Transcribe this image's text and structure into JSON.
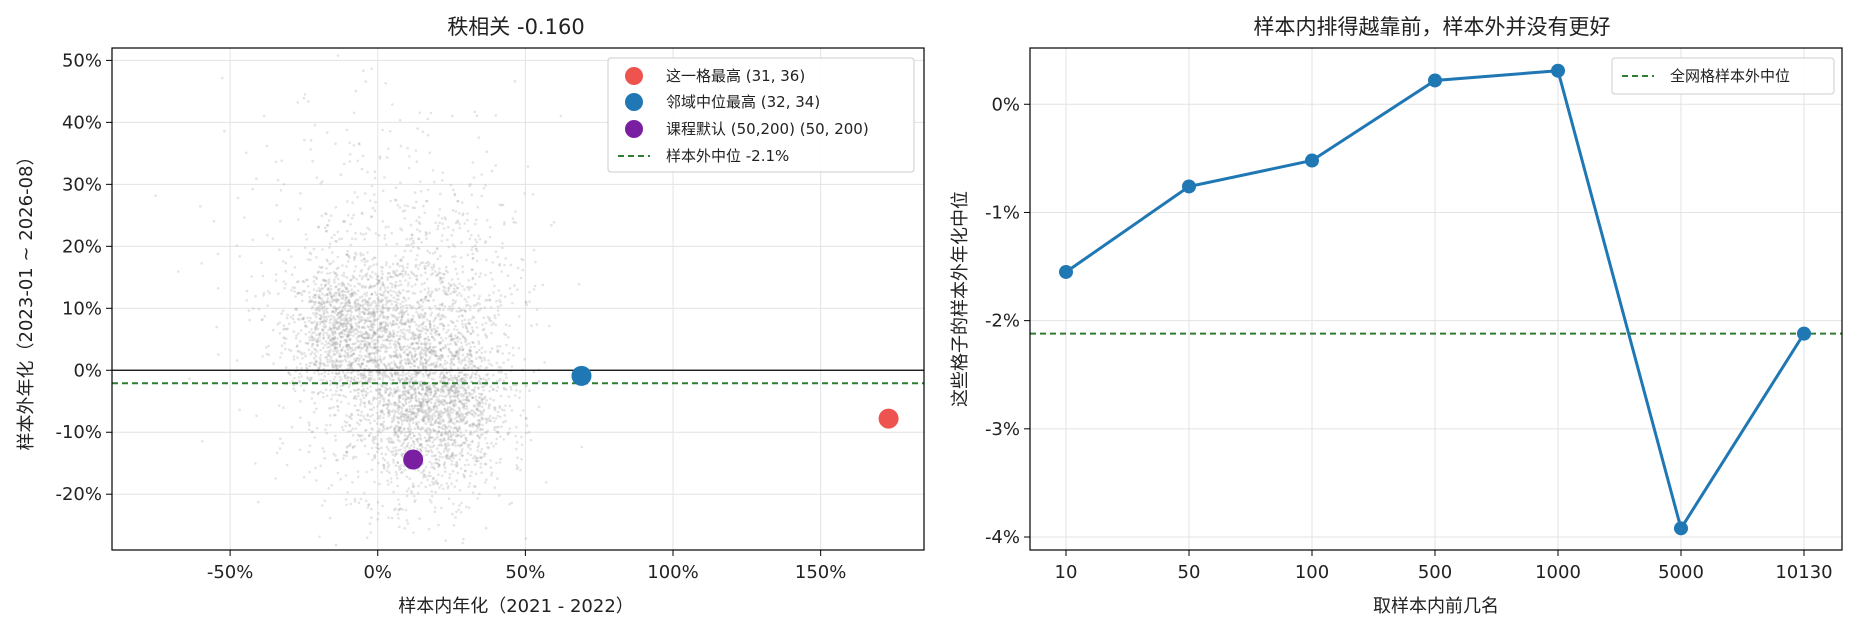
{
  "chart_data": [
    {
      "type": "scatter",
      "title": "秩相关 -0.160",
      "xlabel": "样本内年化（2021 - 2022）",
      "ylabel": "样本外年化（2023-01 ~ 2026-08）",
      "xlim": [
        -0.9,
        1.85
      ],
      "ylim": [
        -0.29,
        0.52
      ],
      "xticks": [
        {
          "value": -0.5,
          "label": "-50%"
        },
        {
          "value": 0.0,
          "label": "0%"
        },
        {
          "value": 0.5,
          "label": "50%"
        },
        {
          "value": 1.0,
          "label": "100%"
        },
        {
          "value": 1.5,
          "label": "150%"
        }
      ],
      "yticks": [
        {
          "value": -0.2,
          "label": "-20%"
        },
        {
          "value": -0.1,
          "label": "-10%"
        },
        {
          "value": 0.0,
          "label": "0%"
        },
        {
          "value": 0.1,
          "label": "10%"
        },
        {
          "value": 0.2,
          "label": "20%"
        },
        {
          "value": 0.3,
          "label": "30%"
        },
        {
          "value": 0.4,
          "label": "40%"
        },
        {
          "value": 0.5,
          "label": "50%"
        }
      ],
      "grid": true,
      "legend_position": "top-right",
      "background_cloud": {
        "color": "#9e9e9e",
        "clusters": [
          {
            "x": -0.13,
            "y": 0.07,
            "sx": 0.09,
            "sy": 0.05,
            "n": 900
          },
          {
            "x": 0.05,
            "y": 0.0,
            "sx": 0.14,
            "sy": 0.1,
            "n": 1500
          },
          {
            "x": 0.22,
            "y": -0.06,
            "sx": 0.11,
            "sy": 0.07,
            "n": 1300
          },
          {
            "x": 0.25,
            "y": 0.1,
            "sx": 0.14,
            "sy": 0.1,
            "n": 450
          },
          {
            "x": 0.0,
            "y": 0.15,
            "sx": 0.25,
            "sy": 0.15,
            "n": 500
          }
        ]
      },
      "highlights": [
        {
          "name": "这一格最高 (31, 36)",
          "x": 1.73,
          "y": -0.078,
          "color": "#ef5350"
        },
        {
          "name": "邻域中位最高 (32, 34)",
          "x": 0.69,
          "y": -0.009,
          "color": "#1f77b4"
        },
        {
          "name": "课程默认 (50,200) (50, 200)",
          "x": 0.12,
          "y": -0.144,
          "color": "#7b1fa2"
        }
      ],
      "hline_zero": {
        "y": 0.0,
        "color": "#000000"
      },
      "median_line": {
        "name": "样本外中位 -2.1%",
        "y": -0.021,
        "color": "#2e7d32"
      }
    },
    {
      "type": "line",
      "title": "样本内排得越靠前，样本外并没有更好",
      "xlabel": "取样本内前几名",
      "ylabel": "这些格子的样本外年化中位",
      "categories": [
        "10",
        "50",
        "100",
        "500",
        "1000",
        "5000",
        "10130"
      ],
      "values": [
        -1.55,
        -0.76,
        -0.52,
        0.22,
        0.31,
        -3.92,
        -2.12
      ],
      "ylim": [
        -4.12,
        0.52
      ],
      "yticks": [
        {
          "value": 0,
          "label": "0%"
        },
        {
          "value": -1,
          "label": "-1%"
        },
        {
          "value": -2,
          "label": "-2%"
        },
        {
          "value": -3,
          "label": "-3%"
        },
        {
          "value": -4,
          "label": "-4%"
        }
      ],
      "grid": true,
      "legend_position": "top-right",
      "color": "#1f77b4",
      "reference_line": {
        "name": "全网格样本外中位",
        "y": -2.12,
        "color": "#2e7d32"
      }
    }
  ]
}
